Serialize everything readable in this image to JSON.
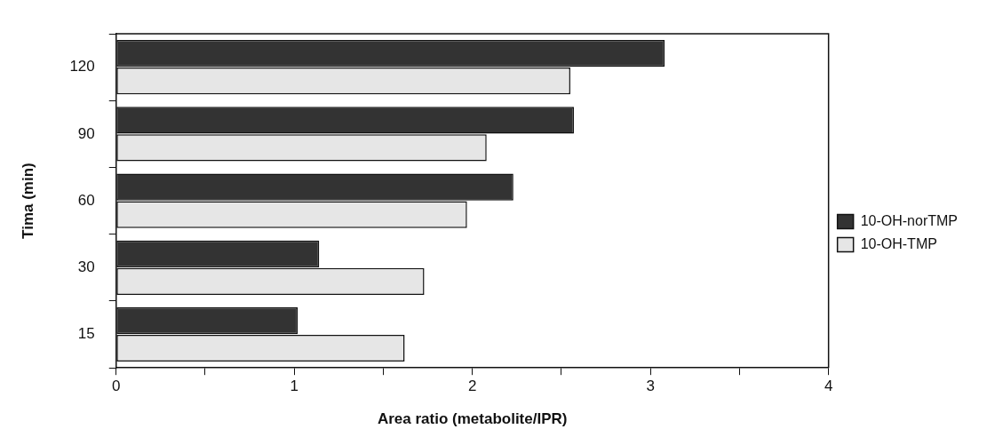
{
  "chart_data": {
    "type": "bar",
    "orientation": "horizontal",
    "xlabel": "Area ratio (metabolite/IPR)",
    "ylabel": "Tima (min)",
    "categories": [
      "120",
      "90",
      "60",
      "30",
      "15"
    ],
    "series": [
      {
        "name": "10-OH-norTMP",
        "color": "#333333",
        "values": [
          3.08,
          2.57,
          2.23,
          1.14,
          1.02
        ]
      },
      {
        "name": "10-OH-TMP",
        "color": "#e6e6e6",
        "values": [
          2.55,
          2.08,
          1.97,
          1.73,
          1.62
        ]
      }
    ],
    "xlim": [
      0,
      4
    ],
    "xticks": [
      0,
      {
        "value": 0.5,
        "label": null
      },
      1,
      {
        "value": 1.5,
        "label": null
      },
      2,
      {
        "value": 2.5,
        "label": null
      },
      3,
      {
        "value": 3.5,
        "label": null
      },
      4
    ],
    "grid": false,
    "legend": "right"
  }
}
